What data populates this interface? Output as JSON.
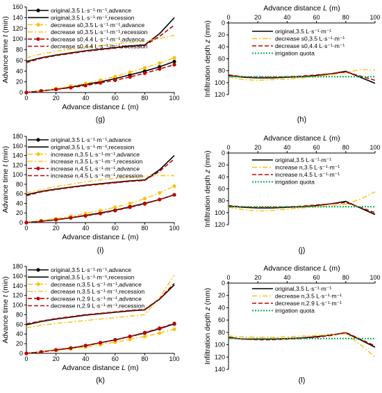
{
  "colors": {
    "original": "#000000",
    "modified": "#ffc000",
    "second": "#c00000",
    "quota": "#00b050"
  },
  "chart_data": [
    {
      "id": "g",
      "type": "line",
      "label": "(g)",
      "xlabel": "Advance distance L (m)",
      "ylabel": "Advance time t (min)",
      "xlim": [
        0,
        100
      ],
      "ylim": [
        0,
        160
      ],
      "xticks": [
        0,
        20,
        40,
        60,
        80,
        100
      ],
      "yticks": [
        0,
        20,
        40,
        60,
        80,
        100,
        120,
        140,
        160
      ],
      "x": [
        0,
        10,
        20,
        30,
        40,
        50,
        60,
        70,
        80,
        90,
        100
      ],
      "series": [
        {
          "name": "original,3.5 L·s⁻¹·m⁻¹,advance",
          "color": "original",
          "style": "solid",
          "marker": true,
          "values": [
            0,
            3,
            6,
            10,
            15,
            20,
            26,
            33,
            40,
            48,
            58
          ]
        },
        {
          "name": "original,3.5 L·s⁻¹·m⁻¹,recession",
          "color": "original",
          "style": "solid",
          "marker": false,
          "values": [
            58,
            65,
            70,
            74,
            78,
            81,
            84,
            87,
            89,
            110,
            140
          ]
        },
        {
          "name": "decrease s0,3.5 L·s⁻¹·m⁻¹,advance",
          "color": "modified",
          "style": "dashdot",
          "marker": true,
          "values": [
            0,
            3,
            7,
            12,
            17,
            23,
            30,
            38,
            46,
            55,
            65
          ]
        },
        {
          "name": "decrease s0,3.5 L·s⁻¹·m⁻¹,recession",
          "color": "modified",
          "style": "dashdot",
          "marker": false,
          "values": [
            65,
            72,
            77,
            81,
            85,
            88,
            91,
            94,
            96,
            101,
            107
          ]
        },
        {
          "name": "decrease s0,4.4 L·s⁻¹·m⁻¹,advance",
          "color": "second",
          "style": "dash",
          "marker": true,
          "values": [
            0,
            3,
            6,
            9,
            13,
            18,
            23,
            29,
            36,
            44,
            52
          ]
        },
        {
          "name": "decrease s0,4.4 L·s⁻¹·m⁻¹,recession",
          "color": "second",
          "style": "dash",
          "marker": false,
          "values": [
            56,
            64,
            69,
            73,
            77,
            80,
            83,
            86,
            88,
            105,
            126
          ]
        }
      ]
    },
    {
      "id": "h",
      "type": "line",
      "label": "(h)",
      "xlabel": "Advance distance L (m)",
      "ylabel": "Infiltration depth z (mm)",
      "xlim": [
        0,
        100
      ],
      "ylim": [
        0,
        120
      ],
      "reverse_y": true,
      "xaxis_top": true,
      "xticks": [
        0,
        20,
        40,
        60,
        80,
        100
      ],
      "yticks": [
        0,
        20,
        40,
        60,
        80,
        100,
        120
      ],
      "x": [
        0,
        10,
        20,
        30,
        40,
        50,
        60,
        70,
        80,
        90,
        100
      ],
      "series": [
        {
          "name": "original,3.5 L·s⁻¹·m⁻¹",
          "color": "original",
          "style": "solid",
          "marker": false,
          "values": [
            88,
            91,
            92,
            92,
            91,
            90,
            88,
            85,
            81,
            91,
            101
          ]
        },
        {
          "name": "decrease s0,3.5 L·s⁻¹·m⁻¹",
          "color": "modified",
          "style": "dashdot",
          "marker": false,
          "values": [
            90,
            95,
            96,
            95,
            94,
            92,
            90,
            87,
            83,
            78,
            79
          ]
        },
        {
          "name": "decrease s0,4.4 L·s⁻¹·m⁻¹",
          "color": "second",
          "style": "dash",
          "marker": false,
          "values": [
            87,
            90,
            91,
            91,
            90,
            89,
            87,
            85,
            82,
            89,
            96
          ]
        },
        {
          "name": "irrigation quota",
          "color": "quota",
          "style": "dot",
          "marker": false,
          "values": [
            90,
            90,
            90,
            90,
            90,
            90,
            90,
            90,
            90,
            90,
            90
          ]
        }
      ]
    },
    {
      "id": "i",
      "type": "line",
      "label": "(i)",
      "xlabel": "Advance distance L (m)",
      "ylabel": "Advance time t (min)",
      "xlim": [
        0,
        100
      ],
      "ylim": [
        0,
        180
      ],
      "xticks": [
        0,
        20,
        40,
        60,
        80,
        100
      ],
      "yticks": [
        0,
        20,
        40,
        60,
        80,
        100,
        120,
        140,
        160,
        180
      ],
      "x": [
        0,
        10,
        20,
        30,
        40,
        50,
        60,
        70,
        80,
        90,
        100
      ],
      "series": [
        {
          "name": "original,3.5 L·s⁻¹·m⁻¹,advance",
          "color": "original",
          "style": "solid",
          "marker": true,
          "values": [
            0,
            3,
            6,
            10,
            15,
            20,
            26,
            33,
            40,
            48,
            58
          ]
        },
        {
          "name": "original,3.5 L·s⁻¹·m⁻¹,recession",
          "color": "original",
          "style": "solid",
          "marker": false,
          "values": [
            58,
            65,
            70,
            74,
            78,
            81,
            84,
            87,
            89,
            110,
            140
          ]
        },
        {
          "name": "increase n,3.5 L·s⁻¹·m⁻¹,advance",
          "color": "modified",
          "style": "dashdot",
          "marker": true,
          "values": [
            0,
            4,
            8,
            13,
            19,
            25,
            32,
            40,
            50,
            62,
            76
          ]
        },
        {
          "name": "increase n,3.5 L·s⁻¹·m⁻¹,recession",
          "color": "modified",
          "style": "dashdot",
          "marker": false,
          "values": [
            62,
            69,
            75,
            80,
            85,
            89,
            92,
            95,
            97,
            98,
            98
          ]
        },
        {
          "name": "increase n,4.5 L·s⁻¹·m⁻¹,advance",
          "color": "second",
          "style": "dash",
          "marker": true,
          "values": [
            0,
            3,
            6,
            10,
            14,
            19,
            25,
            32,
            39,
            48,
            58
          ]
        },
        {
          "name": "increase n,4.5 L·s⁻¹·m⁻¹,recession",
          "color": "second",
          "style": "dash",
          "marker": false,
          "values": [
            56,
            64,
            69,
            73,
            77,
            80,
            83,
            86,
            88,
            107,
            133
          ]
        }
      ]
    },
    {
      "id": "j",
      "type": "line",
      "label": "(j)",
      "xlabel": "Advance distance L (m)",
      "ylabel": "Infiltration depth z (mm)",
      "xlim": [
        0,
        100
      ],
      "ylim": [
        0,
        120
      ],
      "reverse_y": true,
      "xaxis_top": true,
      "xticks": [
        0,
        20,
        40,
        60,
        80,
        100
      ],
      "yticks": [
        0,
        20,
        40,
        60,
        80,
        100,
        120
      ],
      "x": [
        0,
        10,
        20,
        30,
        40,
        50,
        60,
        70,
        80,
        90,
        100
      ],
      "series": [
        {
          "name": "original,3.5 L·s⁻¹·m⁻¹",
          "color": "original",
          "style": "solid",
          "marker": false,
          "values": [
            89,
            91,
            92,
            92,
            91,
            90,
            88,
            85,
            81,
            92,
            103
          ]
        },
        {
          "name": "increase n,3.5 L·s⁻¹·m⁻¹",
          "color": "modified",
          "style": "dashdot",
          "marker": false,
          "values": [
            91,
            95,
            97,
            96,
            94,
            92,
            90,
            88,
            86,
            77,
            65
          ]
        },
        {
          "name": "increase n,4.5 L·s⁻¹·m⁻¹",
          "color": "second",
          "style": "dash",
          "marker": false,
          "values": [
            88,
            90,
            91,
            91,
            90,
            89,
            87,
            85,
            83,
            91,
            100
          ]
        },
        {
          "name": "irrigation quota",
          "color": "quota",
          "style": "dot",
          "marker": false,
          "values": [
            90,
            90,
            90,
            90,
            90,
            90,
            90,
            90,
            90,
            90,
            90
          ]
        }
      ]
    },
    {
      "id": "k",
      "type": "line",
      "label": "(k)",
      "xlabel": "Advance distance L (m)",
      "ylabel": "Advance time t (min)",
      "xlim": [
        0,
        100
      ],
      "ylim": [
        0,
        180
      ],
      "xticks": [
        0,
        20,
        40,
        60,
        80,
        100
      ],
      "yticks": [
        0,
        20,
        40,
        60,
        80,
        100,
        120,
        140,
        160,
        180
      ],
      "x": [
        0,
        10,
        20,
        30,
        40,
        50,
        60,
        70,
        80,
        90,
        100
      ],
      "series": [
        {
          "name": "original,3.5 L·s⁻¹·m⁻¹,advance",
          "color": "original",
          "style": "solid",
          "marker": true,
          "values": [
            0,
            3,
            7,
            11,
            16,
            22,
            28,
            35,
            42,
            51,
            61
          ]
        },
        {
          "name": "original,3.5 L·s⁻¹·m⁻¹,recession",
          "color": "original",
          "style": "solid",
          "marker": false,
          "values": [
            59,
            66,
            71,
            75,
            79,
            82,
            85,
            88,
            90,
            112,
            142
          ]
        },
        {
          "name": "decrease n,3.5 L·s⁻¹·m⁻¹,advance",
          "color": "modified",
          "style": "dashdot",
          "marker": true,
          "values": [
            0,
            3,
            6,
            9,
            13,
            18,
            23,
            29,
            35,
            42,
            50
          ]
        },
        {
          "name": "decrease n,3.5 L·s⁻¹·m⁻¹,recession",
          "color": "modified",
          "style": "dashdot",
          "marker": false,
          "values": [
            53,
            58,
            62,
            65,
            68,
            71,
            74,
            77,
            80,
            115,
            162
          ]
        },
        {
          "name": "decrease n,2.9 L·s⁻¹·m⁻¹,advance",
          "color": "second",
          "style": "dash",
          "marker": true,
          "values": [
            0,
            3,
            7,
            11,
            16,
            22,
            28,
            35,
            43,
            52,
            62
          ]
        },
        {
          "name": "decrease n,2.9 L·s⁻¹·m⁻¹,recession",
          "color": "second",
          "style": "dash",
          "marker": false,
          "values": [
            61,
            67,
            72,
            76,
            80,
            83,
            86,
            89,
            91,
            113,
            145
          ]
        }
      ]
    },
    {
      "id": "l",
      "type": "line",
      "label": "(l)",
      "xlabel": "Advance distance L (m)",
      "ylabel": "Infiltration depth z (mm)",
      "xlim": [
        0,
        100
      ],
      "ylim": [
        0,
        140
      ],
      "reverse_y": true,
      "xaxis_top": true,
      "xticks": [
        0,
        20,
        40,
        60,
        80,
        100
      ],
      "yticks": [
        0,
        20,
        40,
        60,
        80,
        100,
        120,
        140
      ],
      "x": [
        0,
        10,
        20,
        30,
        40,
        50,
        60,
        70,
        80,
        90,
        100
      ],
      "series": [
        {
          "name": "original,3.5 L·s⁻¹·m⁻¹",
          "color": "original",
          "style": "solid",
          "marker": false,
          "values": [
            88,
            91,
            91,
            91,
            90,
            89,
            87,
            84,
            81,
            92,
            104
          ]
        },
        {
          "name": "decrease n,3.5 L·s⁻¹·m⁻¹",
          "color": "modified",
          "style": "dashdot",
          "marker": false,
          "values": [
            86,
            87,
            88,
            88,
            87,
            86,
            85,
            84,
            82,
            100,
            120
          ]
        },
        {
          "name": "decrease n,2.9 L·s⁻¹·m⁻¹",
          "color": "second",
          "style": "dash",
          "marker": false,
          "values": [
            89,
            91,
            92,
            92,
            91,
            90,
            88,
            85,
            80,
            91,
            102
          ]
        },
        {
          "name": "irrigation quota",
          "color": "quota",
          "style": "dot",
          "marker": false,
          "values": [
            90,
            90,
            90,
            90,
            90,
            90,
            90,
            90,
            90,
            90,
            90
          ]
        }
      ]
    }
  ]
}
